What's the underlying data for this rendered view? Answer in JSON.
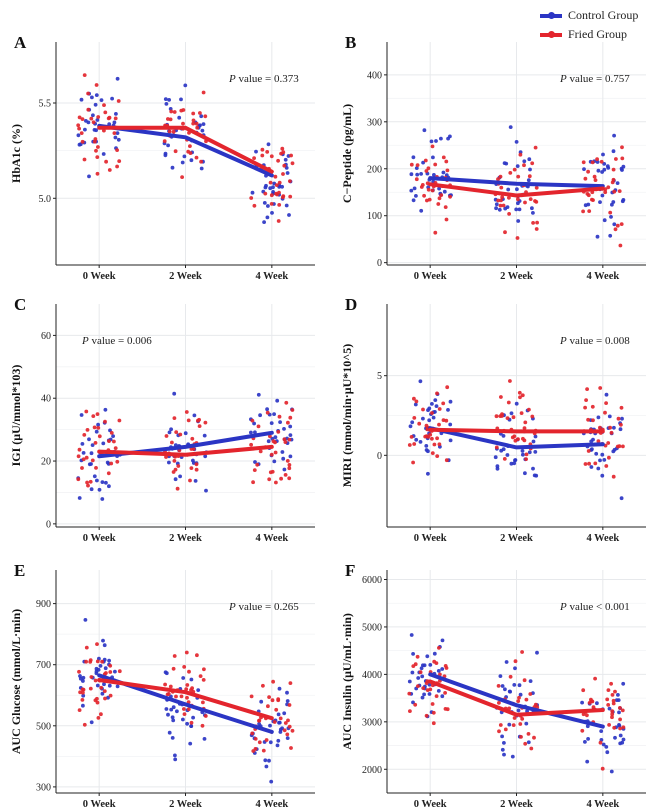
{
  "colors": {
    "control": "#2b35c4",
    "fried": "#e3252d",
    "grid": "#e7e9ec",
    "axis": "#222222"
  },
  "legend": {
    "items": [
      {
        "label": "Control Group",
        "color": "#2b35c4"
      },
      {
        "label": "Fried Group",
        "color": "#e3252d"
      }
    ]
  },
  "chart_data": [
    {
      "type": "scatter",
      "letter": "A",
      "title": "",
      "ylabel": "HbA1c (%)",
      "xlabel": "",
      "categories": [
        "0 Week",
        "2 Week",
        "4 Week"
      ],
      "ylim": [
        4.65,
        5.82
      ],
      "yticks": [
        5.0,
        5.5
      ],
      "ytick_labels": [
        "5.0",
        "5.5"
      ],
      "annotation": {
        "italic": "P",
        "text": " value = 0.373"
      },
      "series": [
        {
          "name": "Control Group",
          "color": "#2b35c4",
          "means": [
            5.38,
            5.32,
            5.12
          ]
        },
        {
          "name": "Fried Group",
          "color": "#e3252d",
          "means": [
            5.37,
            5.37,
            5.14
          ]
        }
      ]
    },
    {
      "type": "scatter",
      "letter": "B",
      "title": "",
      "ylabel": "C−Peptide (pg/mL)",
      "xlabel": "",
      "categories": [
        "0 Week",
        "2 Week",
        "4 Week"
      ],
      "ylim": [
        -5,
        470
      ],
      "yticks": [
        0,
        100,
        200,
        300,
        400
      ],
      "ytick_labels": [
        "0",
        "100",
        "200",
        "300",
        "400"
      ],
      "annotation": {
        "italic": "P",
        "text": " value = 0.757"
      },
      "series": [
        {
          "name": "Control Group",
          "color": "#2b35c4",
          "means": [
            180,
            168,
            163
          ]
        },
        {
          "name": "Fried Group",
          "color": "#e3252d",
          "means": [
            167,
            143,
            158
          ]
        }
      ]
    },
    {
      "type": "scatter",
      "letter": "C",
      "title": "",
      "ylabel": "IGI (μU/mmol*103)",
      "xlabel": "",
      "categories": [
        "0 Week",
        "2 Week",
        "4 Week"
      ],
      "ylim": [
        -1,
        70
      ],
      "yticks": [
        0,
        20,
        40,
        60
      ],
      "ytick_labels": [
        "0",
        "20",
        "40",
        "60"
      ],
      "annotation": {
        "italic": "P",
        "text": " value = 0.006"
      },
      "series": [
        {
          "name": "Control Group",
          "color": "#2b35c4",
          "means": [
            21.5,
            24.5,
            29
          ]
        },
        {
          "name": "Fried Group",
          "color": "#e3252d",
          "means": [
            23,
            22,
            24.5
          ]
        }
      ]
    },
    {
      "type": "scatter",
      "letter": "D",
      "title": "",
      "ylabel": "MIRI (mmol/min·μU*10^5)",
      "xlabel": "",
      "categories": [
        "0 Week",
        "2 Week",
        "4 Week"
      ],
      "ylim": [
        -4.5,
        9.5
      ],
      "yticks": [
        0,
        5
      ],
      "ytick_labels": [
        "0",
        "5"
      ],
      "annotation": {
        "italic": "P",
        "text": " value = 0.008"
      },
      "series": [
        {
          "name": "Control Group",
          "color": "#2b35c4",
          "means": [
            1.7,
            0.5,
            0.7
          ]
        },
        {
          "name": "Fried Group",
          "color": "#e3252d",
          "means": [
            1.6,
            1.5,
            1.5
          ]
        }
      ]
    },
    {
      "type": "scatter",
      "letter": "E",
      "title": "",
      "ylabel": "AUC Glucose (mmol/L·min)",
      "xlabel": "",
      "categories": [
        "0 Week",
        "2 Week",
        "4 Week"
      ],
      "ylim": [
        280,
        1010
      ],
      "yticks": [
        300,
        500,
        700,
        900
      ],
      "ytick_labels": [
        "300",
        "500",
        "700",
        "900"
      ],
      "annotation": {
        "italic": "P",
        "text": " value = 0.265"
      },
      "series": [
        {
          "name": "Control Group",
          "color": "#2b35c4",
          "means": [
            665,
            570,
            480
          ]
        },
        {
          "name": "Fried Group",
          "color": "#e3252d",
          "means": [
            650,
            610,
            525
          ]
        }
      ]
    },
    {
      "type": "scatter",
      "letter": "F",
      "title": "",
      "ylabel": "AUC Insulin (μU/mL·min)",
      "xlabel": "",
      "categories": [
        "0 Week",
        "2 Week",
        "4 Week"
      ],
      "ylim": [
        1500,
        6200
      ],
      "yticks": [
        2000,
        3000,
        4000,
        5000,
        6000
      ],
      "ytick_labels": [
        "2000",
        "3000",
        "4000",
        "5000",
        "6000"
      ],
      "annotation": {
        "italic": "P",
        "text": " value < 0.001"
      },
      "series": [
        {
          "name": "Control Group",
          "color": "#2b35c4",
          "means": [
            4000,
            3350,
            2900
          ]
        },
        {
          "name": "Fried Group",
          "color": "#e3252d",
          "means": [
            3850,
            3150,
            3250
          ]
        }
      ]
    }
  ]
}
